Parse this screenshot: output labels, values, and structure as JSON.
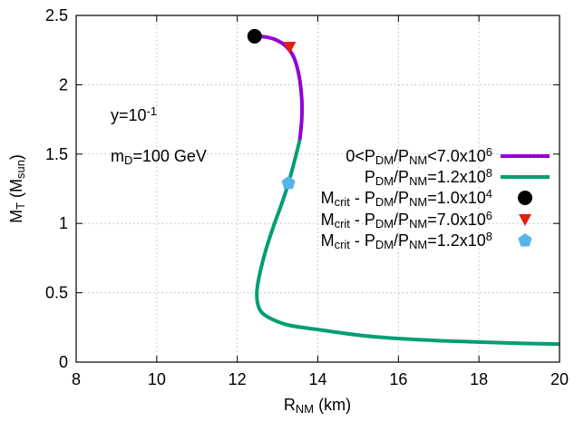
{
  "chart_data": {
    "type": "line",
    "xlabel": [
      [
        "R",
        ""
      ],
      [
        "NM",
        "sub"
      ],
      [
        " (km)",
        ""
      ]
    ],
    "ylabel": [
      [
        "M",
        ""
      ],
      [
        "T",
        "sub"
      ],
      [
        " (M",
        ""
      ],
      [
        "sun",
        "sub"
      ],
      [
        ")",
        ""
      ]
    ],
    "xlim": [
      8,
      20
    ],
    "ylim": [
      0,
      2.5
    ],
    "xticks": [
      "8",
      "10",
      "12",
      "14",
      "16",
      "18",
      "20"
    ],
    "yticks": [
      "0",
      "0.5",
      "1",
      "1.5",
      "2",
      "2.5"
    ],
    "grid": true,
    "legend_placement": "right-middle",
    "annotations": [
      [
        [
          "y=10",
          ""
        ],
        [
          "-1",
          "sup"
        ]
      ],
      [
        [
          "m",
          ""
        ],
        [
          "D",
          "sub"
        ],
        [
          "=100 GeV",
          ""
        ]
      ]
    ],
    "series": [
      {
        "name": [
          [
            "0<P",
            ""
          ],
          [
            "DM",
            "sub"
          ],
          [
            "/P",
            ""
          ],
          [
            "NM",
            "sub"
          ],
          [
            "<7.0x10",
            ""
          ],
          [
            "6",
            "sup"
          ]
        ],
        "kind": "line",
        "color": "#9400d3",
        "x": [
          12.43,
          12.7,
          12.95,
          13.2,
          13.4,
          13.53,
          13.6,
          13.6,
          13.55
        ],
        "y": [
          2.35,
          2.345,
          2.325,
          2.28,
          2.2,
          2.07,
          1.9,
          1.75,
          1.6
        ]
      },
      {
        "name": [
          [
            "P",
            ""
          ],
          [
            "DM",
            "sub"
          ],
          [
            "/P",
            ""
          ],
          [
            "NM",
            "sub"
          ],
          [
            "=1.2x10",
            ""
          ],
          [
            "8",
            "sup"
          ]
        ],
        "kind": "line",
        "color": "#009e73",
        "x": [
          13.55,
          13.42,
          13.27,
          13.1,
          12.9,
          12.7,
          12.56,
          12.49,
          12.5,
          12.6,
          12.86,
          13.3,
          14,
          15,
          16,
          17,
          18,
          19,
          20
        ],
        "y": [
          1.6,
          1.45,
          1.29,
          1.14,
          0.98,
          0.8,
          0.64,
          0.52,
          0.43,
          0.36,
          0.31,
          0.265,
          0.235,
          0.195,
          0.17,
          0.155,
          0.145,
          0.136,
          0.13
        ]
      },
      {
        "name": [
          [
            "M",
            ""
          ],
          [
            "crit",
            "sub"
          ],
          [
            " - P",
            ""
          ],
          [
            "DM",
            "sub"
          ],
          [
            "/P",
            ""
          ],
          [
            "NM",
            "sub"
          ],
          [
            "=1.0x10",
            ""
          ],
          [
            "4",
            "sup"
          ]
        ],
        "kind": "point",
        "marker": "circle",
        "color": "#000000",
        "x": [
          12.43
        ],
        "y": [
          2.35
        ]
      },
      {
        "name": [
          [
            "M",
            ""
          ],
          [
            "crit",
            "sub"
          ],
          [
            " - P",
            ""
          ],
          [
            "DM",
            "sub"
          ],
          [
            "/P",
            ""
          ],
          [
            "NM",
            "sub"
          ],
          [
            "=7.0x10",
            ""
          ],
          [
            "6",
            "sup"
          ]
        ],
        "kind": "point",
        "marker": "triangle-down",
        "color": "#e51e10",
        "x": [
          13.3
        ],
        "y": [
          2.27
        ]
      },
      {
        "name": [
          [
            "M",
            ""
          ],
          [
            "crit",
            "sub"
          ],
          [
            " - P",
            ""
          ],
          [
            "DM",
            "sub"
          ],
          [
            "/P",
            ""
          ],
          [
            "NM",
            "sub"
          ],
          [
            "=1.2x10",
            ""
          ],
          [
            "8",
            "sup"
          ]
        ],
        "kind": "point",
        "marker": "pentagon",
        "color": "#56b4e9",
        "x": [
          13.27
        ],
        "y": [
          1.29
        ]
      }
    ]
  }
}
